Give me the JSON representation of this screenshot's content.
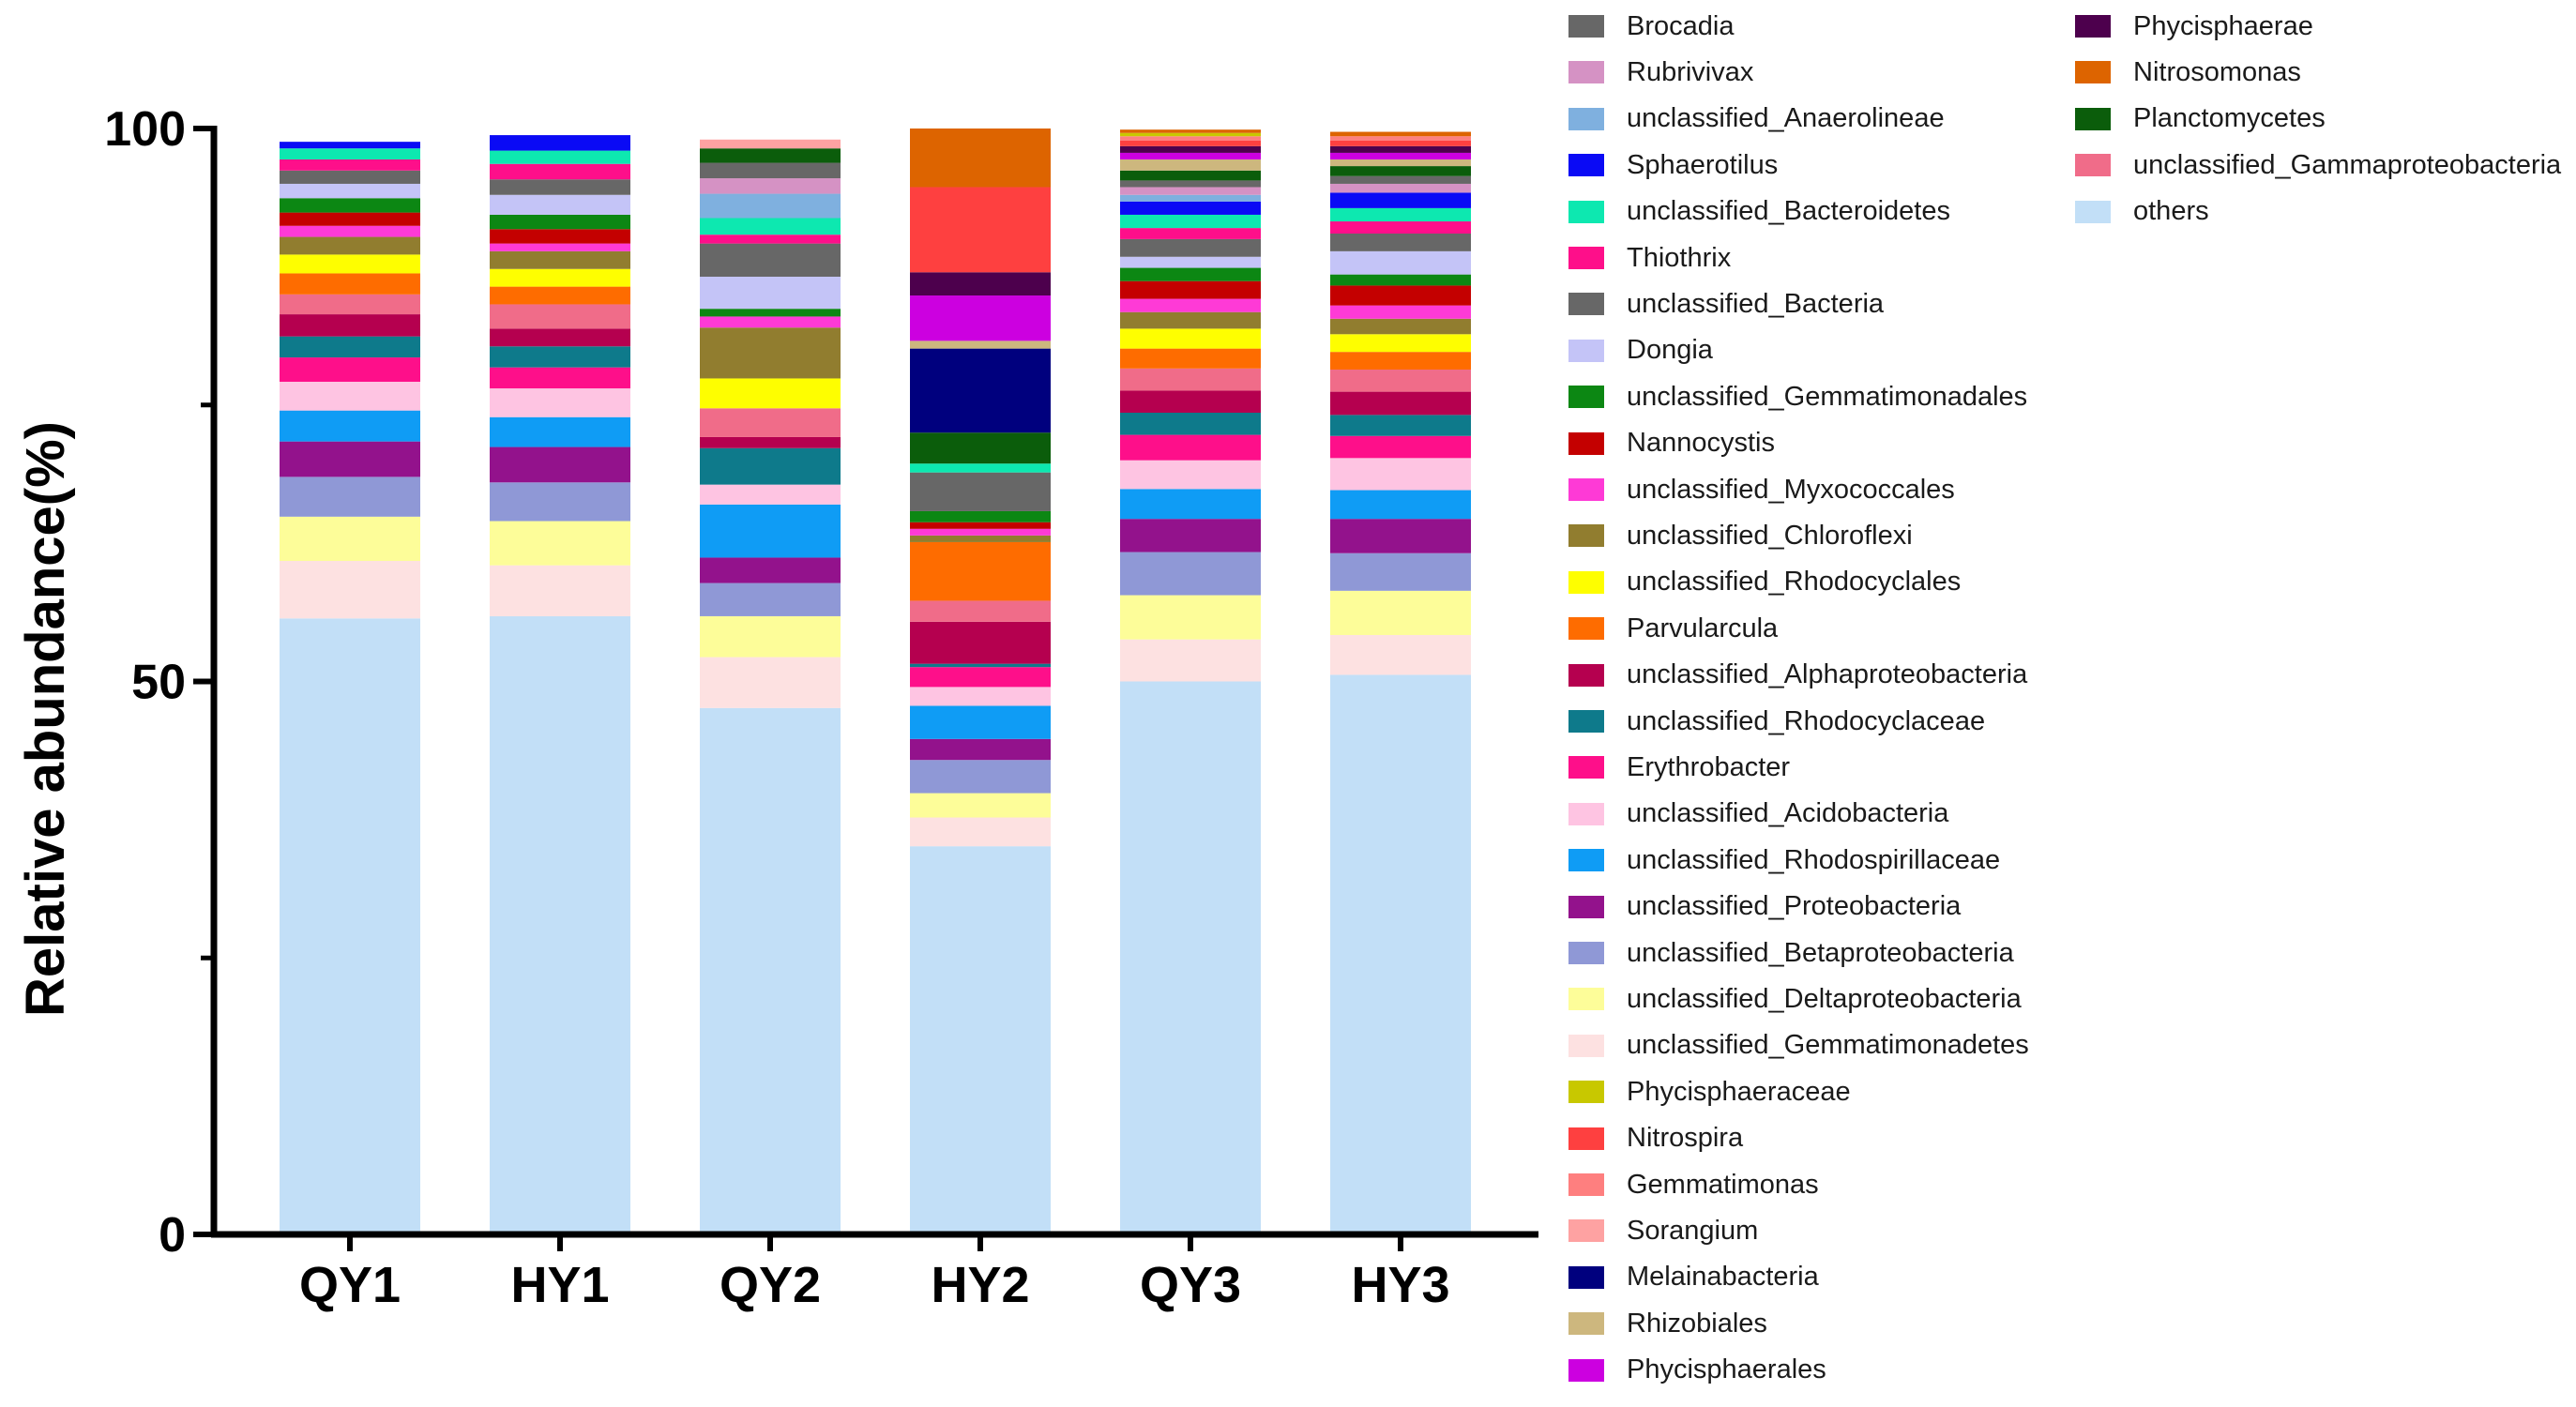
{
  "chart_data": {
    "type": "stacked_bar",
    "title": "",
    "xlabel": "",
    "ylabel": "Relative abundance(%)",
    "ylim": [
      0,
      100
    ],
    "yticks": [
      "0",
      "50",
      "100"
    ],
    "legend_position": "right",
    "categories": [
      "QY1",
      "HY1",
      "QY2",
      "HY2",
      "QY3",
      "HY3"
    ],
    "series": [
      {
        "name": "others",
        "color": "#c2dff7",
        "values": [
          55.7,
          55.9,
          47.6,
          35.1,
          50.0,
          50.6
        ]
      },
      {
        "name": "unclassified_Gemmatimonadetes",
        "color": "#fde1e1",
        "values": [
          5.2,
          4.6,
          4.6,
          2.6,
          3.8,
          3.6
        ]
      },
      {
        "name": "unclassified_Deltaproteobacteria",
        "color": "#fdfd99",
        "values": [
          4.0,
          4.0,
          3.7,
          2.2,
          4.0,
          4.0
        ]
      },
      {
        "name": "unclassified_Betaproteobacteria",
        "color": "#8f98d6",
        "values": [
          3.6,
          3.5,
          3.0,
          3.0,
          3.9,
          3.4
        ]
      },
      {
        "name": "unclassified_Proteobacteria",
        "color": "#93128c",
        "values": [
          3.2,
          3.2,
          2.3,
          1.9,
          3.0,
          3.1
        ]
      },
      {
        "name": "unclassified_Rhodospirillaceae",
        "color": "#0f9cf5",
        "values": [
          2.8,
          2.7,
          4.8,
          3.0,
          2.7,
          2.6
        ]
      },
      {
        "name": "unclassified_Acidobacteria",
        "color": "#fec4e2",
        "values": [
          2.6,
          2.6,
          1.8,
          1.7,
          2.6,
          2.9
        ]
      },
      {
        "name": "Erythrobacter",
        "color": "#fe0f8a",
        "values": [
          2.2,
          1.9,
          0.0,
          1.8,
          2.3,
          2.0
        ]
      },
      {
        "name": "unclassified_Rhodocyclaceae",
        "color": "#0e7a8b",
        "values": [
          1.9,
          1.9,
          3.3,
          0.3,
          2.0,
          1.9
        ]
      },
      {
        "name": "unclassified_Alphaproteobacteria",
        "color": "#b5004f",
        "values": [
          2.0,
          1.6,
          1.0,
          3.8,
          2.0,
          2.1
        ]
      },
      {
        "name": "unclassified_Gammaproteobacteria",
        "color": "#f06c89",
        "values": [
          1.8,
          2.2,
          2.6,
          1.9,
          2.0,
          2.0
        ]
      },
      {
        "name": "Parvularcula",
        "color": "#fe6c00",
        "values": [
          1.9,
          1.6,
          0.0,
          5.3,
          1.8,
          1.6
        ]
      },
      {
        "name": "unclassified_Rhodocyclales",
        "color": "#fefe00",
        "values": [
          1.7,
          1.6,
          2.7,
          0.0,
          1.8,
          1.6
        ]
      },
      {
        "name": "unclassified_Chloroflexi",
        "color": "#917d2f",
        "values": [
          1.6,
          1.6,
          4.6,
          0.6,
          1.5,
          1.4
        ]
      },
      {
        "name": "unclassified_Myxococcales",
        "color": "#fe3ad6",
        "values": [
          1.0,
          0.7,
          1.0,
          0.6,
          1.2,
          1.2
        ]
      },
      {
        "name": "Nannocystis",
        "color": "#c40000",
        "values": [
          1.2,
          1.3,
          0.0,
          0.6,
          1.6,
          1.8
        ]
      },
      {
        "name": "unclassified_Gemmatimonadales",
        "color": "#0c8713",
        "values": [
          1.3,
          1.3,
          0.7,
          1.0,
          1.2,
          1.0
        ]
      },
      {
        "name": "Dongia",
        "color": "#c4c4f7",
        "values": [
          1.3,
          1.8,
          2.9,
          0.0,
          1.0,
          2.1
        ]
      },
      {
        "name": "unclassified_Bacteria",
        "color": "#676767",
        "values": [
          1.2,
          1.4,
          3.0,
          3.5,
          1.6,
          1.6
        ]
      },
      {
        "name": "Thiothrix",
        "color": "#fe0f8a",
        "values": [
          1.0,
          1.4,
          0.8,
          0.0,
          1.0,
          1.1
        ]
      },
      {
        "name": "unclassified_Bacteroidetes",
        "color": "#0de8b0",
        "values": [
          1.0,
          1.2,
          1.5,
          0.8,
          1.2,
          1.2
        ]
      },
      {
        "name": "Sphaerotilus",
        "color": "#0a0af5",
        "values": [
          0.6,
          1.4,
          0.0,
          0.0,
          1.2,
          1.4
        ]
      },
      {
        "name": "unclassified_Anaerolineae",
        "color": "#7fb0df",
        "values": [
          0.0,
          0.0,
          2.2,
          0.0,
          0.6,
          0.0
        ]
      },
      {
        "name": "Rubrivivax",
        "color": "#d592c4",
        "values": [
          0.0,
          0.0,
          1.4,
          0.0,
          0.7,
          0.8
        ]
      },
      {
        "name": "Brocadia",
        "color": "#676767",
        "values": [
          0.0,
          0.0,
          1.4,
          0.0,
          0.6,
          0.7
        ]
      },
      {
        "name": "Planctomycetes",
        "color": "#0b5d0b",
        "values": [
          0.0,
          0.0,
          1.3,
          2.8,
          0.9,
          0.9
        ]
      },
      {
        "name": "Melainabacteria",
        "color": "#00007e",
        "values": [
          0.0,
          0.0,
          0.0,
          7.6,
          0.0,
          0.0
        ]
      },
      {
        "name": "Rhizobiales",
        "color": "#cdb77e",
        "values": [
          0.0,
          0.0,
          0.0,
          0.7,
          1.0,
          0.6
        ]
      },
      {
        "name": "Phycisphaerales",
        "color": "#cc00e0",
        "values": [
          0.0,
          0.0,
          0.0,
          4.1,
          0.6,
          0.6
        ]
      },
      {
        "name": "Phycisphaerae",
        "color": "#4d004d",
        "values": [
          0.0,
          0.0,
          0.0,
          2.1,
          0.6,
          0.6
        ]
      },
      {
        "name": "Nitrospira",
        "color": "#fe4040",
        "values": [
          0.0,
          0.0,
          0.0,
          7.7,
          0.5,
          0.5
        ]
      },
      {
        "name": "Gemmatimonas",
        "color": "#fe7f7f",
        "values": [
          0.0,
          0.0,
          0.0,
          0.0,
          0.4,
          0.4
        ]
      },
      {
        "name": "Sorangium",
        "color": "#fea2a2",
        "values": [
          0.0,
          0.0,
          0.8,
          0.0,
          0.0,
          0.0
        ]
      },
      {
        "name": "Phycisphaeraceae",
        "color": "#c8c800",
        "values": [
          0.0,
          0.0,
          0.0,
          0.0,
          0.3,
          0.0
        ]
      },
      {
        "name": "Nitrosomonas",
        "color": "#dd6400",
        "values": [
          0.0,
          0.0,
          0.0,
          5.3,
          0.3,
          0.4
        ]
      }
    ]
  },
  "legend": {
    "columns": [
      [
        "Brocadia",
        "Rubrivivax",
        "unclassified_Anaerolineae",
        "Sphaerotilus",
        "unclassified_Bacteroidetes",
        "Thiothrix",
        "unclassified_Bacteria",
        "Dongia",
        "unclassified_Gemmatimonadales",
        "Nannocystis",
        "unclassified_Myxococcales",
        "unclassified_Chloroflexi",
        "unclassified_Rhodocyclales",
        "Parvularcula",
        "unclassified_Alphaproteobacteria",
        "unclassified_Rhodocyclaceae",
        "Erythrobacter",
        "unclassified_Acidobacteria",
        "unclassified_Rhodospirillaceae",
        "unclassified_Proteobacteria",
        "unclassified_Betaproteobacteria",
        "unclassified_Deltaproteobacteria",
        "unclassified_Gemmatimonadetes",
        "Phycisphaeraceae",
        "Nitrospira",
        "Gemmatimonas",
        "Sorangium",
        "Melainabacteria",
        "Rhizobiales",
        "Phycisphaerales"
      ],
      [
        "Phycisphaerae",
        "Nitrosomonas",
        "Planctomycetes",
        "unclassified_Gammaproteobacteria",
        "others"
      ]
    ]
  }
}
